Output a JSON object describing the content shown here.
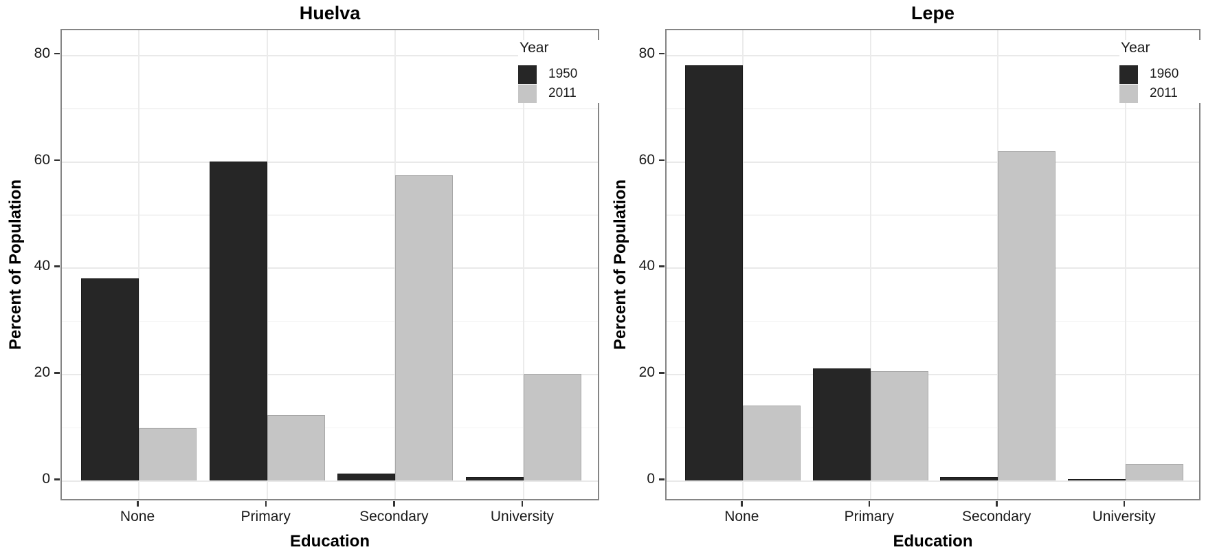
{
  "figure": {
    "background": "#ffffff",
    "plot_text_color": "#1a1a1a",
    "panel_border_color": "#858585",
    "major_grid_color": "#e9e9e9",
    "minor_grid_color": "#f4f4f4"
  },
  "chart_data": [
    {
      "type": "bar",
      "title": "Huelva",
      "xlabel": "Education",
      "ylabel": "Percent of Population",
      "categories": [
        "None",
        "Primary",
        "Secondary",
        "University"
      ],
      "series": [
        {
          "name": "1950",
          "color": "#262626",
          "border_color": "#1a1a1a",
          "values": [
            38,
            60,
            1.3,
            0.7
          ]
        },
        {
          "name": "2011",
          "color": "#c5c5c5",
          "border_color": "#a8a8a8",
          "values": [
            9.8,
            12.3,
            57.3,
            20
          ]
        }
      ],
      "legend_title": "Year",
      "legend_position": "top-right-inside",
      "ylim": [
        0,
        84.6
      ],
      "yticks": [
        0,
        20,
        40,
        60,
        80
      ],
      "minor_yticks": [
        10,
        30,
        50,
        70
      ],
      "grid": "on"
    },
    {
      "type": "bar",
      "title": "Lepe",
      "xlabel": "Education",
      "ylabel": "Percent of Population",
      "categories": [
        "None",
        "Primary",
        "Secondary",
        "University"
      ],
      "series": [
        {
          "name": "1960",
          "color": "#262626",
          "border_color": "#1a1a1a",
          "values": [
            78.1,
            21,
            0.6,
            0.2
          ]
        },
        {
          "name": "2011",
          "color": "#c5c5c5",
          "border_color": "#a8a8a8",
          "values": [
            14.1,
            20.5,
            61.9,
            3.1
          ]
        }
      ],
      "legend_title": "Year",
      "legend_position": "top-right-inside",
      "ylim": [
        0,
        84.6
      ],
      "yticks": [
        0,
        20,
        40,
        60,
        80
      ],
      "minor_yticks": [
        10,
        30,
        50,
        70
      ],
      "grid": "on"
    }
  ]
}
